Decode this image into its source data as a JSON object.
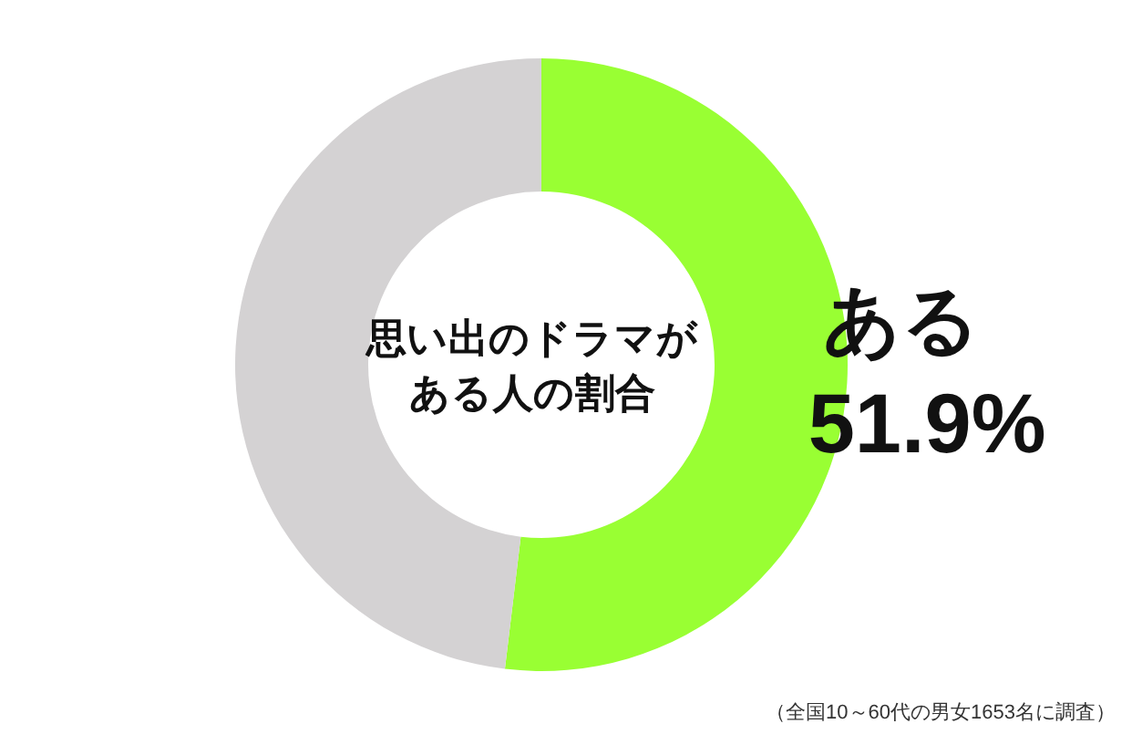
{
  "chart_data": {
    "type": "donut",
    "title": "思い出のドラマがある人の割合",
    "categories": [
      "ある",
      null
    ],
    "values": [
      51.9,
      48.1
    ],
    "colors": [
      "#99ff33",
      "#d4d2d3"
    ],
    "value_labels": [
      "51.9%",
      null
    ],
    "annotations": [
      "（全国10～60代の男女1653名に調査）"
    ]
  }
}
